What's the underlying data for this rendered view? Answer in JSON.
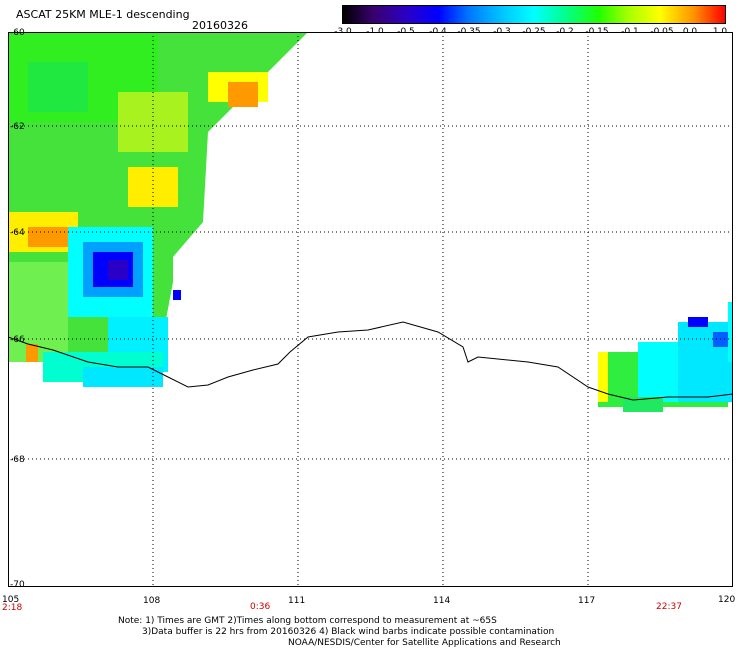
{
  "header": {
    "title": "ASCAT 25KM MLE-1 descending",
    "date": "20160326"
  },
  "colorbar": {
    "tick_labels": [
      "-3.0",
      "-1.0",
      "-0.5",
      "-0.4",
      "-0.35",
      "-0.3",
      "-0.25",
      "-0.2",
      "-0.15",
      "-0.1",
      "-0.05",
      "0.0",
      "1.0"
    ],
    "colors": [
      "#000000",
      "#3a006e",
      "#2a00c8",
      "#0000ff",
      "#0078ff",
      "#00c8ff",
      "#00ffff",
      "#00ff90",
      "#20ff00",
      "#aaff00",
      "#ffff00",
      "#ff9000",
      "#ff0000"
    ]
  },
  "map": {
    "lat_labels": [
      "-60",
      "-62",
      "-64",
      "-66",
      "-68",
      "-70"
    ],
    "lon_labels": [
      "105",
      "108",
      "111",
      "114",
      "117",
      "120"
    ],
    "time_labels": [
      "2:18",
      "0:36",
      "22:37"
    ],
    "lat_range": [
      -60,
      -70
    ],
    "lon_range": [
      105,
      120
    ],
    "coastline_color": "#000000",
    "gridline_style": "dotted"
  },
  "notes": [
    "Note: 1) Times are GMT 2)Times along bottom correspond to measurement at ~65S",
    "3)Data buffer is 22 hrs from 20160326 4) Black wind barbs indicate possible contamination",
    "NOAA/NESDIS/Center for Satellite Applications and Research"
  ]
}
